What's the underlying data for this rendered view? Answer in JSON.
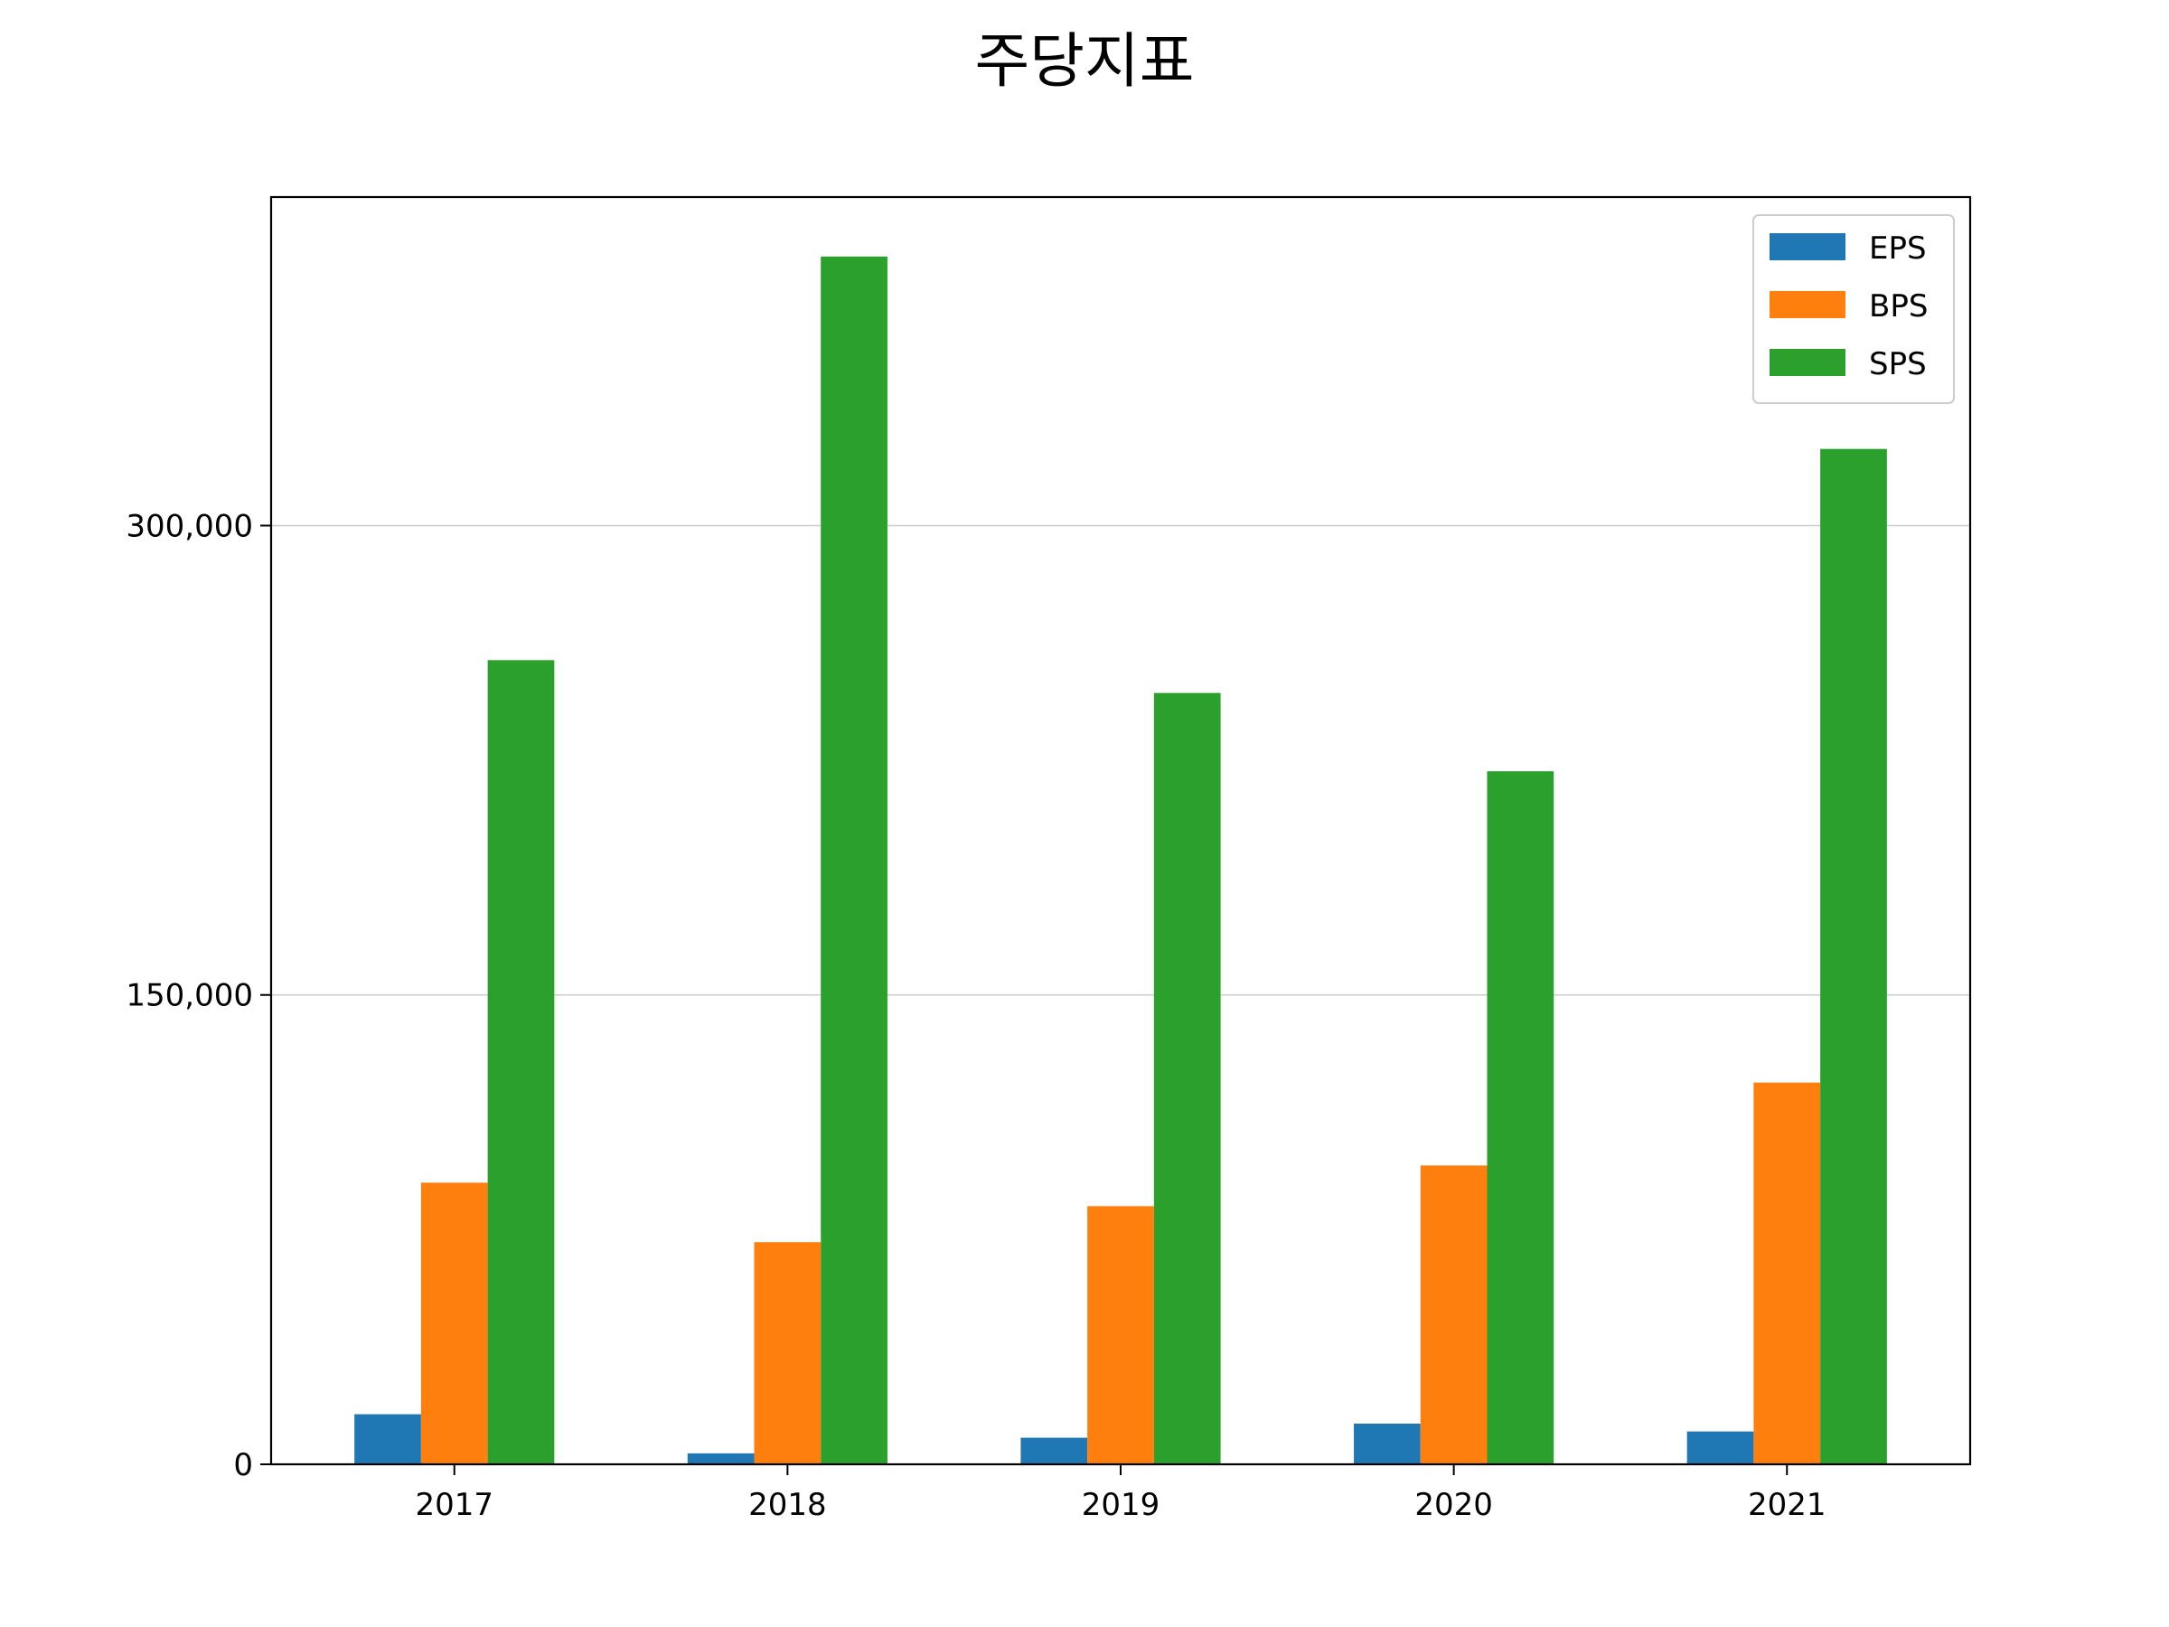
{
  "chart_data": {
    "type": "bar",
    "title": "주당지표",
    "xlabel": "",
    "ylabel": "",
    "categories": [
      "2017",
      "2018",
      "2019",
      "2020",
      "2021"
    ],
    "series": [
      {
        "name": "EPS",
        "color": "#1f77b4",
        "values": [
          16000,
          3500,
          8500,
          13000,
          10500
        ]
      },
      {
        "name": "BPS",
        "color": "#ff7f0e",
        "values": [
          90000,
          71000,
          82500,
          95500,
          122000
        ]
      },
      {
        "name": "SPS",
        "color": "#2ca02c",
        "values": [
          257000,
          386000,
          246500,
          221500,
          324500
        ]
      }
    ],
    "yticks": [
      0,
      150000,
      300000
    ],
    "ytick_labels": [
      "0",
      "150,000",
      "300,000"
    ],
    "ylim": [
      0,
      405000
    ],
    "grid": "y",
    "legend_position": "top-right"
  }
}
